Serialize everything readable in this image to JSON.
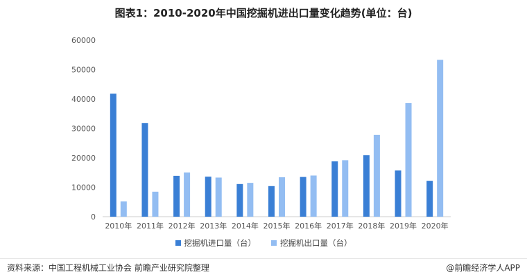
{
  "title": "图表1：2010-2020年中国挖掘机进出口量变化趋势(单位：台)",
  "legend": {
    "import_label": "挖掘机进口量（台）",
    "export_label": "挖掘机出口量（台）"
  },
  "footer": {
    "source": "资料来源：中国工程机械工业协会 前瞻产业研究院整理",
    "brand": "@前瞻经济学人APP"
  },
  "colors": {
    "import": "#3a7fd5",
    "export": "#93bdf2",
    "axis": "#cccccc",
    "tick_text": "#555555"
  },
  "chart_data": {
    "type": "bar",
    "categories": [
      "2010年",
      "2011年",
      "2012年",
      "2013年",
      "2014年",
      "2015年",
      "2016年",
      "2017年",
      "2018年",
      "2019年",
      "2020年"
    ],
    "series": [
      {
        "name": "挖掘机进口量（台）",
        "values": [
          41800,
          31800,
          13900,
          13600,
          11100,
          10400,
          13500,
          18800,
          20900,
          15700,
          12200
        ]
      },
      {
        "name": "挖掘机出口量（台）",
        "values": [
          5200,
          8500,
          15000,
          13300,
          11500,
          13400,
          14000,
          19200,
          27800,
          38600,
          53300
        ]
      }
    ],
    "yticks": [
      "0",
      "10000",
      "20000",
      "30000",
      "40000",
      "50000",
      "60000"
    ],
    "ylim": [
      0,
      60000
    ],
    "grid": false,
    "legend_position": "bottom"
  }
}
